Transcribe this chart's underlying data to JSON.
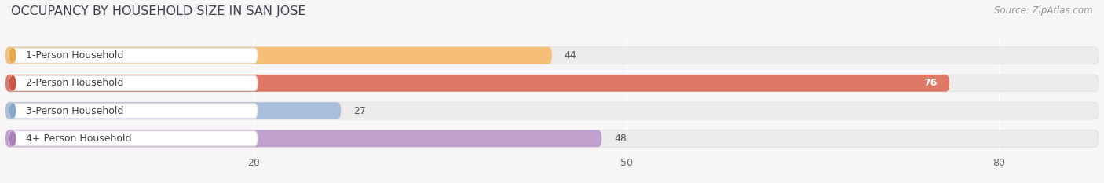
{
  "title": "OCCUPANCY BY HOUSEHOLD SIZE IN SAN JOSE",
  "source": "Source: ZipAtlas.com",
  "categories": [
    "1-Person Household",
    "2-Person Household",
    "3-Person Household",
    "4+ Person Household"
  ],
  "values": [
    44,
    76,
    27,
    48
  ],
  "bar_colors": [
    "#f5bf78",
    "#e07868",
    "#aabedd",
    "#c0a0cc"
  ],
  "bar_bg_color": "#eeebeb",
  "label_dot_colors": [
    "#e8a84a",
    "#cc5544",
    "#88aacc",
    "#aa80bb"
  ],
  "xlim_max": 88,
  "xticks": [
    20,
    50,
    80
  ],
  "background_color": "#f7f5f5",
  "title_color": "#404050",
  "title_fontsize": 11.5,
  "source_fontsize": 8.5,
  "label_fontsize": 9,
  "value_fontsize": 9,
  "value_inside_idx": 1,
  "value_inside_color": "#ffffff",
  "value_outside_color": "#555555"
}
